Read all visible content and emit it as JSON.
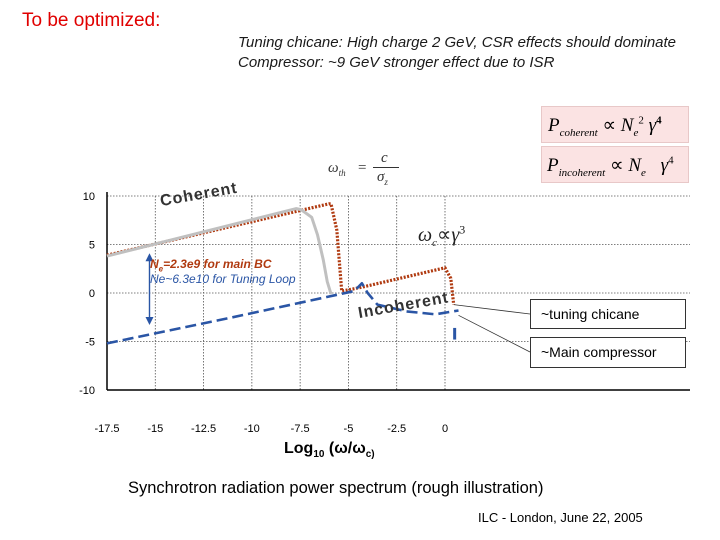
{
  "header": {
    "title": "To be optimized:",
    "note_line1": "Tuning chicane: High charge 2 GeV, CSR effects should dominate",
    "note_line2": "Compressor: ~9 GeV stronger effect due to ISR"
  },
  "formulas": {
    "coherent": {
      "lhs": "P",
      "lhs_sub": "coherent",
      "rel": "∝",
      "var": "N",
      "var_sub": "e",
      "var_sup": "2",
      "gamma": "γ",
      "gamma_sup": "4"
    },
    "incoherent": {
      "lhs": "P",
      "lhs_sub": "incoherent",
      "rel": "∝",
      "var": "N",
      "var_sub": "e",
      "gamma": "γ",
      "gamma_sup": "4"
    },
    "omega_th": {
      "lhs": "ω",
      "lhs_sub": "th",
      "eq": "=",
      "num": "c",
      "den": "σ",
      "den_sub": "z"
    },
    "omega_c": {
      "lhs": "ω",
      "lhs_sub": "c",
      "rel": "∝",
      "rhs": "γ",
      "rhs_sup": "3"
    }
  },
  "chart_data": {
    "type": "line",
    "title": "",
    "xlabel": "Log",
    "xlabel_sub": "10",
    "xlabel_rest": " (ω/ω",
    "xlabel_rest_sub": "c)",
    "xlim": [
      -17.5,
      0
    ],
    "ylim": [
      -10,
      10
    ],
    "x_ticks": [
      "-17.5",
      "-15",
      "-12.5",
      "-10",
      "-7.5",
      "-5",
      "-2.5",
      "0"
    ],
    "y_ticks": [
      "10",
      "5",
      "0",
      "-5",
      "-10"
    ],
    "series": [
      {
        "name": "~tuning chicane",
        "color": "#b03a10",
        "style": "dotted",
        "points": [
          [
            -17.5,
            3.9
          ],
          [
            -6,
            9.2
          ],
          [
            -5.9,
            9.2
          ],
          [
            -5.6,
            6.5
          ],
          [
            -5.35,
            0.2
          ],
          [
            -4.3,
            0.6
          ],
          [
            0,
            2.6
          ],
          [
            0.3,
            1.5
          ],
          [
            0.45,
            -1.2
          ]
        ]
      },
      {
        "name": "",
        "color": "#c0c0c0",
        "style": "solid",
        "points": [
          [
            -17.5,
            3.8
          ],
          [
            -7.7,
            8.7
          ],
          [
            -7.45,
            8.6
          ],
          [
            -6.9,
            7.8
          ],
          [
            -6.6,
            6.0
          ],
          [
            -6.3,
            3.4
          ],
          [
            -6.1,
            1.2
          ],
          [
            -5.9,
            -0.1
          ]
        ]
      },
      {
        "name": "~Main compressor",
        "color": "#2a55a5",
        "style": "dashed",
        "points": [
          [
            -17.5,
            -5.2
          ],
          [
            -11,
            -2.5
          ],
          [
            -4.7,
            0.2
          ],
          [
            -4.3,
            1.0
          ],
          [
            -4.0,
            0.0
          ],
          [
            -3.5,
            -1.2
          ],
          [
            -2,
            -1.9
          ],
          [
            -0.5,
            -2.2
          ],
          [
            0.7,
            -1.8
          ]
        ]
      }
    ]
  },
  "annotations": {
    "coherent": "Coherent",
    "incoherent": "Incoherent",
    "ne_line1_prefix": "N",
    "ne_line1_sub": "e",
    "ne_line1_rest": "=2.3e9 for main BC",
    "ne_line2": "Ne~6.3e10 for Tuning Loop"
  },
  "legend": {
    "tuning": "~tuning chicane",
    "main": "~Main compressor"
  },
  "caption": "Synchrotron radiation power spectrum (rough illustration)",
  "footer": "ILC - London, June 22, 2005",
  "colors": {
    "heading": "#e00000",
    "formula_bg": "#fbe3e3",
    "tuning_curve": "#b03a10",
    "main_curve": "#2a55a5",
    "ne_blue": "#2a55a5"
  }
}
